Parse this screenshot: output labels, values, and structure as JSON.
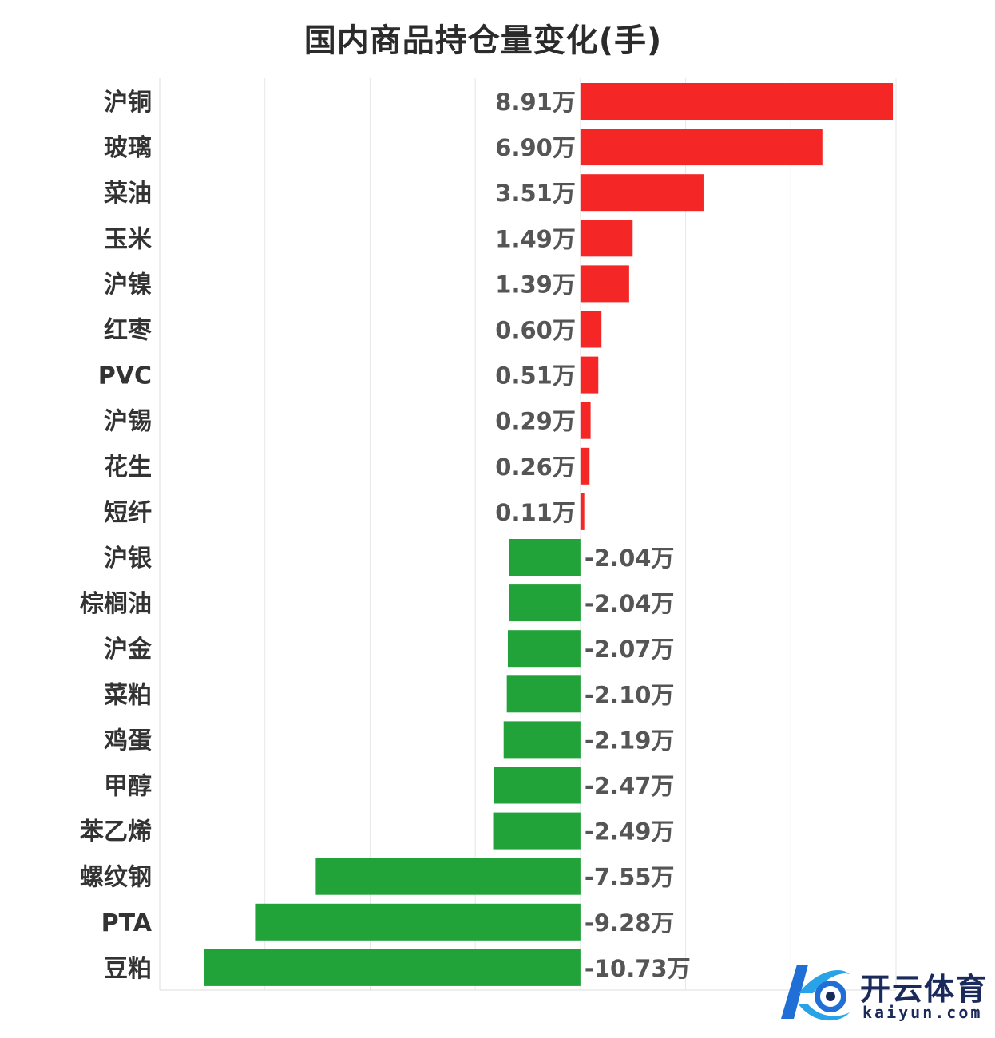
{
  "chart_data": {
    "type": "bar",
    "orientation": "horizontal",
    "title": "国内商品持仓量变化(手)",
    "categories": [
      "沪铜",
      "玻璃",
      "菜油",
      "玉米",
      "沪镍",
      "红枣",
      "PVC",
      "沪锡",
      "花生",
      "短纤",
      "沪银",
      "棕榈油",
      "沪金",
      "菜粕",
      "鸡蛋",
      "甲醇",
      "苯乙烯",
      "螺纹钢",
      "PTA",
      "豆粕"
    ],
    "values": [
      8.91,
      6.9,
      3.51,
      1.49,
      1.39,
      0.6,
      0.51,
      0.29,
      0.26,
      0.11,
      -2.04,
      -2.04,
      -2.07,
      -2.1,
      -2.19,
      -2.47,
      -2.49,
      -7.55,
      -9.28,
      -10.73
    ],
    "value_labels": [
      "8.91万",
      "6.90万",
      "3.51万",
      "1.49万",
      "1.39万",
      "0.60万",
      "0.51万",
      "0.29万",
      "0.26万",
      "0.11万",
      "-2.04万",
      "-2.04万",
      "-2.07万",
      "-2.10万",
      "-2.19万",
      "-2.47万",
      "-2.49万",
      "-7.55万",
      "-9.28万",
      "-10.73万"
    ],
    "unit": "万",
    "xlim": [
      -12,
      9
    ],
    "grid": true,
    "colors": {
      "positive": "#f42626",
      "negative": "#21a33a"
    }
  },
  "watermark": {
    "text_cn": "开云体育",
    "text_en": "kaiyun.com"
  }
}
